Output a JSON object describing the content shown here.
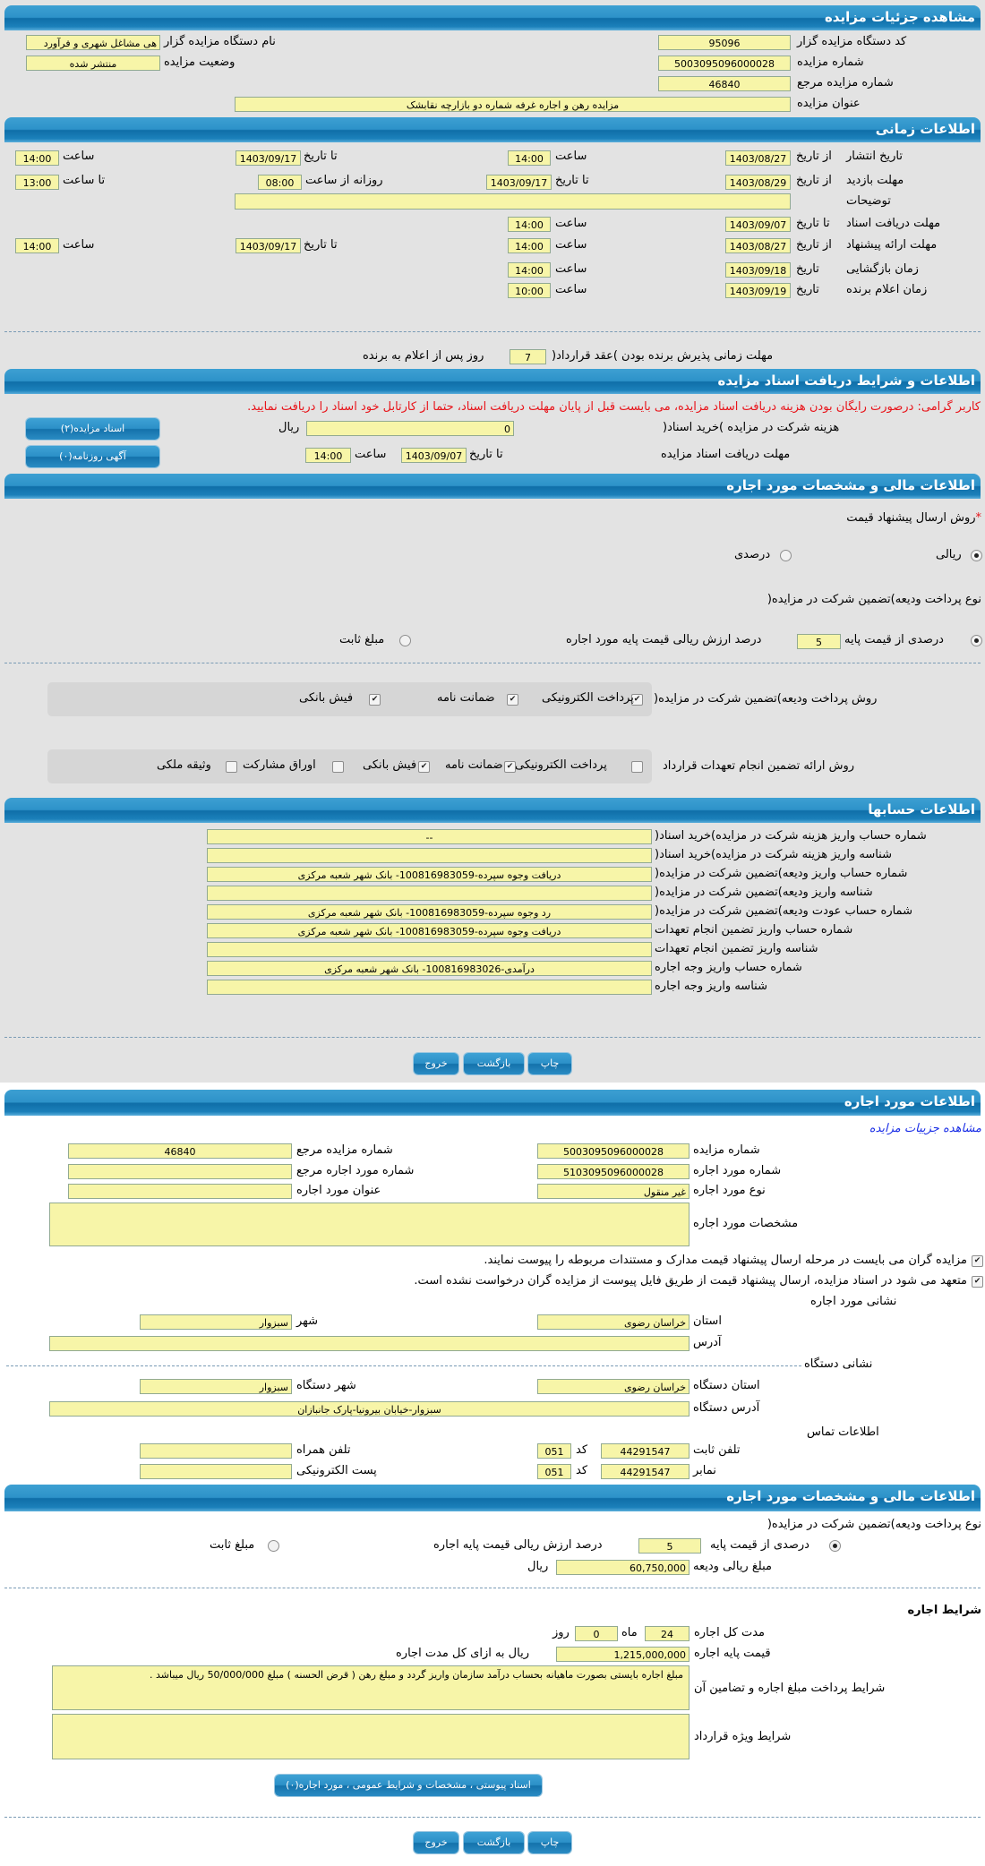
{
  "colors": {
    "header": "#1b80ba",
    "field": "#f7f5a8",
    "notice": "#e8141a",
    "link": "#1a2ee6"
  },
  "auction": {
    "header": "مشاهده جزئیات مزایده",
    "org_code_label": "کد دستگاه مزایده گزار",
    "org_code": "95096",
    "auction_no_label": "شماره مزایده",
    "auction_no": "5003095096000028",
    "ref_no_label": "شماره مزایده مرجع",
    "ref_no": "46840",
    "title_label": "عنوان مزایده",
    "title": "مزایده رهن و اجاره غرفه شماره دو بازارچه نقابشک",
    "org_name_label": "نام دستگاه مزایده گزار",
    "org_name": "هی مشاغل شهری و فرآورد",
    "status_label": "وضعیت مزایده",
    "status": "منتشر شده"
  },
  "timing": {
    "header": "اطلاعات زمانی",
    "publish": {
      "label": "تاریخ انتشار",
      "from_label": "از تاریخ",
      "from_date": "1403/08/27",
      "time_label": "ساعت",
      "time": "14:00",
      "to_label": "تا تاریخ",
      "to_date": "1403/09/17",
      "time2_label": "ساعت",
      "time2": "14:00"
    },
    "visit": {
      "label": "مهلت بازدید",
      "from_label": "از تاریخ",
      "from_date": "1403/08/29",
      "to_label": "تا تاریخ",
      "to_date": "1403/09/17",
      "daily_label": "روزانه از ساعت",
      "daily_from": "08:00",
      "to_time_label": "تا ساعت",
      "to_time": "13:00"
    },
    "notes_label": "توضیحات",
    "notes": "",
    "docs": {
      "label": "مهلت دریافت اسناد",
      "to_label": "تا تاریخ",
      "date": "1403/09/07",
      "time_label": "ساعت",
      "time": "14:00"
    },
    "offer": {
      "label": "مهلت ارائه پیشنهاد",
      "from_label": "از تاریخ",
      "from_date": "1403/08/27",
      "time_label": "ساعت",
      "time": "14:00",
      "to_label": "تا تاریخ",
      "to_date": "1403/09/17",
      "time2_label": "ساعت",
      "time2": "14:00"
    },
    "opening": {
      "label": "زمان بازگشایی",
      "date_label": "تاریخ",
      "date": "1403/09/18",
      "time_label": "ساعت",
      "time": "14:00"
    },
    "winner": {
      "label": "زمان اعلام برنده",
      "date_label": "تاریخ",
      "date": "1403/09/19",
      "time_label": "ساعت",
      "time": "10:00"
    },
    "acceptance": {
      "label": "مهلت زمانی پذیرش برنده بودن )عقد قرارداد(",
      "days": "7",
      "suffix": "روز پس از اعلام به برنده"
    }
  },
  "documents": {
    "header": "اطلاعات و شرایط دریافت اسناد مزایده",
    "notice": "کاربر گرامی: درصورت رایگان بودن هزینه دریافت اسناد مزایده، می بایست قبل از پایان مهلت دریافت اسناد، حتما از کارتابل خود اسناد را دریافت نمایید.",
    "fee_label": "هزینه شرکت در مزایده )خرید اسناد(",
    "fee": "0",
    "currency": "ریال",
    "docs_button": "اسناد مزایده(۲)",
    "deadline_label": "مهلت دریافت اسناد مزایده",
    "to_label": "تا تاریخ",
    "date": "1403/09/07",
    "time_label": "ساعت",
    "time": "14:00",
    "ad_button": "آگهی روزنامه(۰)"
  },
  "financial": {
    "header": "اطلاعات مالی و مشخصات مورد اجاره",
    "required_mark": "*",
    "method_label": "روش ارسال پیشنهاد قیمت",
    "method_options": [
      {
        "label": "ریالی",
        "selected": true
      },
      {
        "label": "درصدی",
        "selected": false
      }
    ],
    "deposit_type_label": "نوع پرداخت ودیعه)تضمین شرکت در مزایده(",
    "percent_option": "درصدی از قیمت پایه",
    "percent_selected": true,
    "percent": "5",
    "percent_suffix": "درصد ارزش ریالی قیمت پایه مورد اجاره",
    "fixed_option": "مبلغ ثابت",
    "fixed_selected": false,
    "deposit_method_label": "روش پرداخت ودیعه)تضمین شرکت در مزایده(",
    "deposit_methods": [
      {
        "label": "پرداخت الکترونیکی",
        "checked": true
      },
      {
        "label": "ضمانت نامه",
        "checked": true
      },
      {
        "label": "فیش بانکی",
        "checked": true
      }
    ],
    "guarantee_label": "روش ارائه تضمین انجام تعهدات قرارداد",
    "guarantee_methods": [
      {
        "label": "پرداخت الکترونیکی",
        "checked": false
      },
      {
        "label": "ضمانت نامه",
        "checked": true
      },
      {
        "label": "فیش بانکی",
        "checked": true
      },
      {
        "label": "اوراق مشارکت",
        "checked": false
      },
      {
        "label": "وثیقه ملکی",
        "checked": false
      }
    ]
  },
  "accounts": {
    "header": "اطلاعات حسابها",
    "rows": [
      {
        "label": "شماره حساب واریز هزینه شرکت در مزایده)خرید اسناد(",
        "value": "--"
      },
      {
        "label": "شناسه واریز هزینه شرکت در مزایده)خرید اسناد(",
        "value": ""
      },
      {
        "label": "شماره حساب واریز ودیعه)تضمین شرکت در مزایده(",
        "value": "دریافت وجوه سپرده-100816983059- بانک شهر شعبه مرکزی"
      },
      {
        "label": "شناسه واریز ودیعه)تضمین شرکت در مزایده(",
        "value": ""
      },
      {
        "label": "شماره حساب عودت ودیعه)تضمین شرکت در مزایده(",
        "value": "رد وجوه سپرده-100816983059- بانک شهر شعبه مرکزی"
      },
      {
        "label": "شماره حساب واریز تضمین انجام تعهدات",
        "value": "دریافت وجوه سپرده-100816983059- بانک شهر شعبه مرکزی"
      },
      {
        "label": "شناسه واریز تضمین انجام تعهدات",
        "value": ""
      },
      {
        "label": "شماره حساب واریز وجه اجاره",
        "value": "درآمدی-100816983026- بانک شهر شعبه مرکزی"
      },
      {
        "label": "شناسه واریز وجه اجاره",
        "value": ""
      }
    ]
  },
  "actions": {
    "print": "چاپ",
    "back": "بازگشت",
    "exit": "خروج"
  },
  "lease": {
    "header": "اطلاعات مورد اجاره",
    "details_link": "مشاهده جزییات مزایده",
    "auction_no_label": "شماره مزایده",
    "auction_no": "5003095096000028",
    "ref_no_label": "شماره مزایده مرجع",
    "ref_no": "46840",
    "item_no_label": "شماره مورد اجاره",
    "item_no": "5103095096000028",
    "item_ref_label": "شماره مورد اجاره مرجع",
    "item_ref": "",
    "item_type_label": "نوع مورد اجاره",
    "item_type": "غیر منقول",
    "item_title_label": "عنوان مورد اجاره",
    "item_title": "",
    "specs_label": "مشخصات مورد اجاره",
    "specs": "",
    "checks": [
      {
        "label": "مزایده گران می بایست در مرحله ارسال پیشنهاد قیمت مدارک و مستندات مربوطه را پیوست نمایند.",
        "checked": true
      },
      {
        "label": "متعهد می شود در اسناد مزایده، ارسال پیشنهاد قیمت از طریق فایل پیوست از مزایده گران درخواست نشده است.",
        "checked": true
      }
    ],
    "address_title": "نشانی مورد اجاره",
    "province_label": "استان",
    "province": "خراسان رضوی",
    "city_label": "شهر",
    "city": "سبزوار",
    "address_label": "آدرس",
    "address": "",
    "org_address_title": "نشانی دستگاه",
    "org_province_label": "استان دستگاه",
    "org_province": "خراسان رضوی",
    "org_city_label": "شهر دستگاه",
    "org_city": "سبزوار",
    "org_address_label": "آدرس دستگاه",
    "org_address": "سبزوار-خیابان بیرونیا-پارک جانبازان",
    "contact_title": "اطلاعات تماس",
    "phone_label": "تلفن ثابت",
    "phone": "44291547",
    "code_label": "کد",
    "phone_code": "051",
    "mobile_label": "تلفن همراه",
    "mobile": "",
    "fax_label": "نمابر",
    "fax": "44291547",
    "fax_code": "051",
    "email_label": "پست الکترونیکی",
    "email": ""
  },
  "lease_financial": {
    "header": "اطلاعات مالی و مشخصات مورد اجاره",
    "deposit_type_label": "نوع پرداخت ودیعه)تضمین شرکت در مزایده(",
    "percent_option": "درصدی از قیمت پایه",
    "percent_selected": true,
    "percent": "5",
    "percent_suffix": "درصد ارزش ریالی قیمت پایه اجاره",
    "fixed_option": "مبلغ ثابت",
    "fixed_selected": false,
    "deposit_amount_label": "مبلغ ریالی ودیعه",
    "deposit_amount": "60,750,000",
    "currency": "ریال",
    "terms_title": "شرایط اجاره",
    "duration_label": "مدت کل اجاره",
    "months": "24",
    "months_label": "ماه",
    "days": "0",
    "days_label": "روز",
    "base_price_label": "قیمت پایه اجاره",
    "base_price": "1,215,000,000",
    "base_price_suffix": "ریال به ازای کل مدت اجاره",
    "payment_terms_label": "شرایط پرداخت مبلغ اجاره و تضامین آن",
    "payment_terms": "مبلغ اجاره بایستی بصورت ماهیانه بحساب درآمد سازمان واریز گردد و مبلغ رهن ( قرض الحسنه ) مبلغ 50/000/000 ریال میباشد .",
    "special_terms_label": "شرایط ویژه قرارداد",
    "special_terms": "",
    "attachments_button": "اسناد پیوستی ، مشخصات و شرایط عمومی ، مورد اجاره(۰)"
  }
}
